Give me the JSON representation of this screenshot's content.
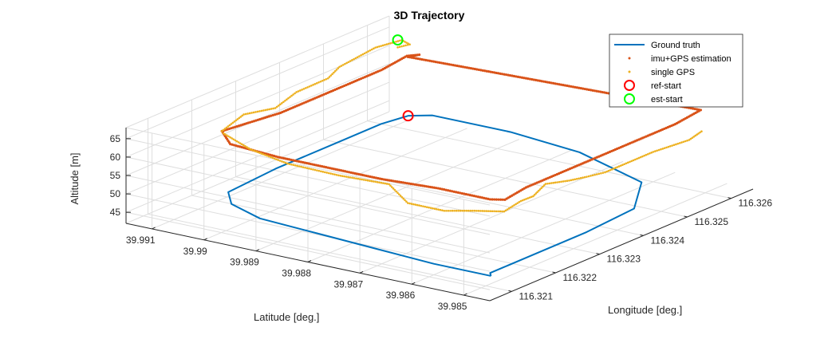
{
  "chart_data": {
    "type": "line",
    "title": "3D Trajectory",
    "xlabel": "Longitude [deg.]",
    "ylabel": "Latitude [deg.]",
    "zlabel": "Altitude [m]",
    "xlim": [
      116.3205,
      116.3265
    ],
    "ylim": [
      39.9845,
      39.9915
    ],
    "zlim": [
      42,
      68
    ],
    "x_ticks": [
      "116.321",
      "116.322",
      "116.323",
      "116.324",
      "116.325",
      "116.326"
    ],
    "y_ticks": [
      "39.985",
      "39.986",
      "39.987",
      "39.988",
      "39.989",
      "39.99",
      "39.991"
    ],
    "z_ticks": [
      "45",
      "50",
      "55",
      "60",
      "65"
    ],
    "grid": true,
    "legend_position": "top-right",
    "series": [
      {
        "name": "Ground truth",
        "style": "line",
        "color": "#0072BD",
        "x": [
          116.321,
          116.321,
          116.3211,
          116.3212,
          116.3213,
          116.3216,
          116.322,
          116.3232,
          116.3246,
          116.3256,
          116.3261,
          116.3263,
          116.3263,
          116.3261,
          116.3255,
          116.3245,
          116.3233,
          116.3222,
          116.3214,
          116.3211,
          116.321
        ],
        "y": [
          39.9849,
          39.986,
          39.9872,
          39.9884,
          39.9896,
          39.9904,
          39.9908,
          39.9909,
          39.9909,
          39.9909,
          39.9908,
          39.9905,
          39.989,
          39.9875,
          39.9858,
          39.9851,
          39.985,
          39.985,
          39.985,
          39.985,
          39.9849
        ],
        "z": [
          45,
          45,
          45,
          45,
          45,
          45,
          45,
          45,
          45,
          45,
          45,
          45,
          45,
          45,
          45,
          45,
          45,
          45,
          45,
          45,
          45
        ]
      },
      {
        "name": "imu+GPS estimation",
        "style": "dots",
        "color": "#D95319",
        "x": [
          116.3261,
          116.326,
          116.3256,
          116.3249,
          116.3238,
          116.3226,
          116.3215,
          116.3211,
          116.321,
          116.321,
          116.321,
          116.3211,
          116.3211,
          116.3211,
          116.3212,
          116.3218,
          116.3228,
          116.324,
          116.3252,
          116.3259,
          116.3261
        ],
        "y": [
          39.9908,
          39.9905,
          39.9904,
          39.9903,
          39.9903,
          39.9903,
          39.9905,
          39.99,
          39.989,
          39.988,
          39.987,
          39.986,
          39.9855,
          39.985,
          39.9848,
          39.9849,
          39.9849,
          39.9849,
          39.9849,
          39.985,
          39.9908
        ],
        "z": [
          61,
          63,
          65,
          65,
          65,
          65,
          65,
          65,
          65,
          65,
          65,
          65,
          65,
          65,
          65,
          65,
          65,
          65,
          65,
          65,
          61
        ]
      },
      {
        "name": "single GPS",
        "style": "dots",
        "color": "#EDB120",
        "x": [
          116.3261,
          116.3259,
          116.3256,
          116.325,
          116.3243,
          116.3238,
          116.3232,
          116.3226,
          116.322,
          116.3215,
          116.3213,
          116.3212,
          116.3211,
          116.3212,
          116.3214,
          116.321,
          116.321,
          116.3211,
          116.3213,
          116.3218,
          116.3222,
          116.3226,
          116.3229,
          116.3233,
          116.3236,
          116.324,
          116.3247,
          116.3254,
          116.3258
        ],
        "y": [
          39.991,
          39.9906,
          39.9905,
          39.9905,
          39.9906,
          39.9904,
          39.9905,
          39.9904,
          39.9905,
          39.9905,
          39.9903,
          39.9897,
          39.9889,
          39.988,
          39.9872,
          39.9865,
          39.9858,
          39.9853,
          39.9849,
          39.985,
          39.9851,
          39.9852,
          39.985,
          39.985,
          39.9849,
          39.9849,
          39.9849,
          39.9848,
          39.9849
        ],
        "z": [
          63,
          66,
          69,
          70,
          68,
          68,
          67,
          66,
          67,
          65,
          66,
          64,
          63,
          62,
          61,
          60,
          60,
          61,
          61,
          61,
          60,
          61,
          61,
          60,
          60,
          60,
          60,
          60,
          60
        ]
      },
      {
        "name": "ref-start",
        "style": "marker",
        "color": "#FF0000",
        "x": [
          116.3261
        ],
        "y": [
          39.9908
        ],
        "z": [
          45
        ]
      },
      {
        "name": "est-start",
        "style": "marker",
        "color": "#00FF00",
        "x": [
          116.3261
        ],
        "y": [
          39.991
        ],
        "z": [
          65
        ]
      }
    ]
  }
}
